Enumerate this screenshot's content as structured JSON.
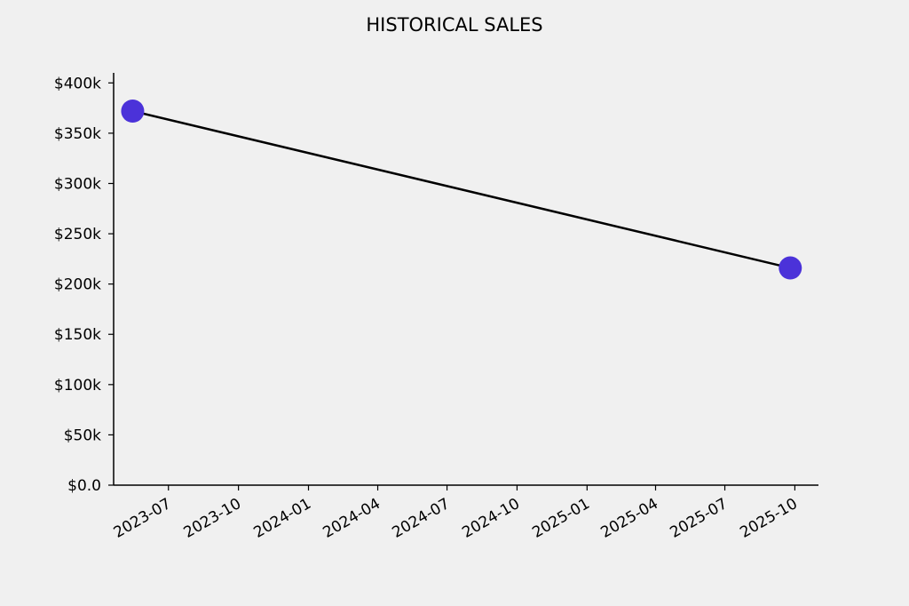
{
  "chart_data": {
    "type": "line",
    "title": "HISTORICAL SALES",
    "xlabel": "",
    "ylabel": "",
    "x_axis_type": "date",
    "x_ticks": [
      "2023-07",
      "2023-10",
      "2024-01",
      "2024-04",
      "2024-07",
      "2024-10",
      "2025-01",
      "2025-04",
      "2025-07",
      "2025-10"
    ],
    "y_ticks": [
      "$0.0",
      "$50k",
      "$100k",
      "$150k",
      "$200k",
      "$250k",
      "$300k",
      "$350k",
      "$400k"
    ],
    "ylim": [
      0,
      410000
    ],
    "xlim": [
      "2023-04-20",
      "2025-11-01"
    ],
    "grid": false,
    "legend": "none",
    "series": [
      {
        "x": [
          "2023-05-15",
          "2025-09-25"
        ],
        "values": [
          372000,
          216000
        ],
        "line_color": "#000000",
        "marker_color": "#4b32d9"
      }
    ]
  }
}
